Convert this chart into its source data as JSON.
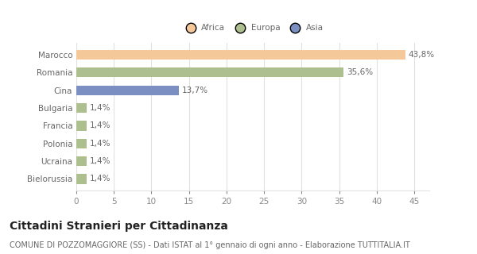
{
  "categories": [
    "Marocco",
    "Romania",
    "Cina",
    "Bulgaria",
    "Francia",
    "Polonia",
    "Ucraina",
    "Bielorussia"
  ],
  "values": [
    43.8,
    35.6,
    13.7,
    1.4,
    1.4,
    1.4,
    1.4,
    1.4
  ],
  "colors": [
    "#F5C899",
    "#ADBF8E",
    "#7B8FC2",
    "#ADBF8E",
    "#ADBF8E",
    "#ADBF8E",
    "#ADBF8E",
    "#ADBF8E"
  ],
  "labels": [
    "43,8%",
    "35,6%",
    "13,7%",
    "1,4%",
    "1,4%",
    "1,4%",
    "1,4%",
    "1,4%"
  ],
  "legend_items": [
    {
      "label": "Africa",
      "color": "#F5C899"
    },
    {
      "label": "Europa",
      "color": "#ADBF8E"
    },
    {
      "label": "Asia",
      "color": "#7B8FC2"
    }
  ],
  "xlim": [
    0,
    47
  ],
  "xticks": [
    0,
    5,
    10,
    15,
    20,
    25,
    30,
    35,
    40,
    45
  ],
  "title": "Cittadini Stranieri per Cittadinanza",
  "subtitle": "COMUNE DI POZZOMAGGIORE (SS) - Dati ISTAT al 1° gennaio di ogni anno - Elaborazione TUTTITALIA.IT",
  "background_color": "#ffffff",
  "grid_color": "#e0e0e0",
  "title_fontsize": 10,
  "subtitle_fontsize": 7,
  "label_fontsize": 7.5,
  "tick_fontsize": 7.5,
  "bar_height": 0.55
}
